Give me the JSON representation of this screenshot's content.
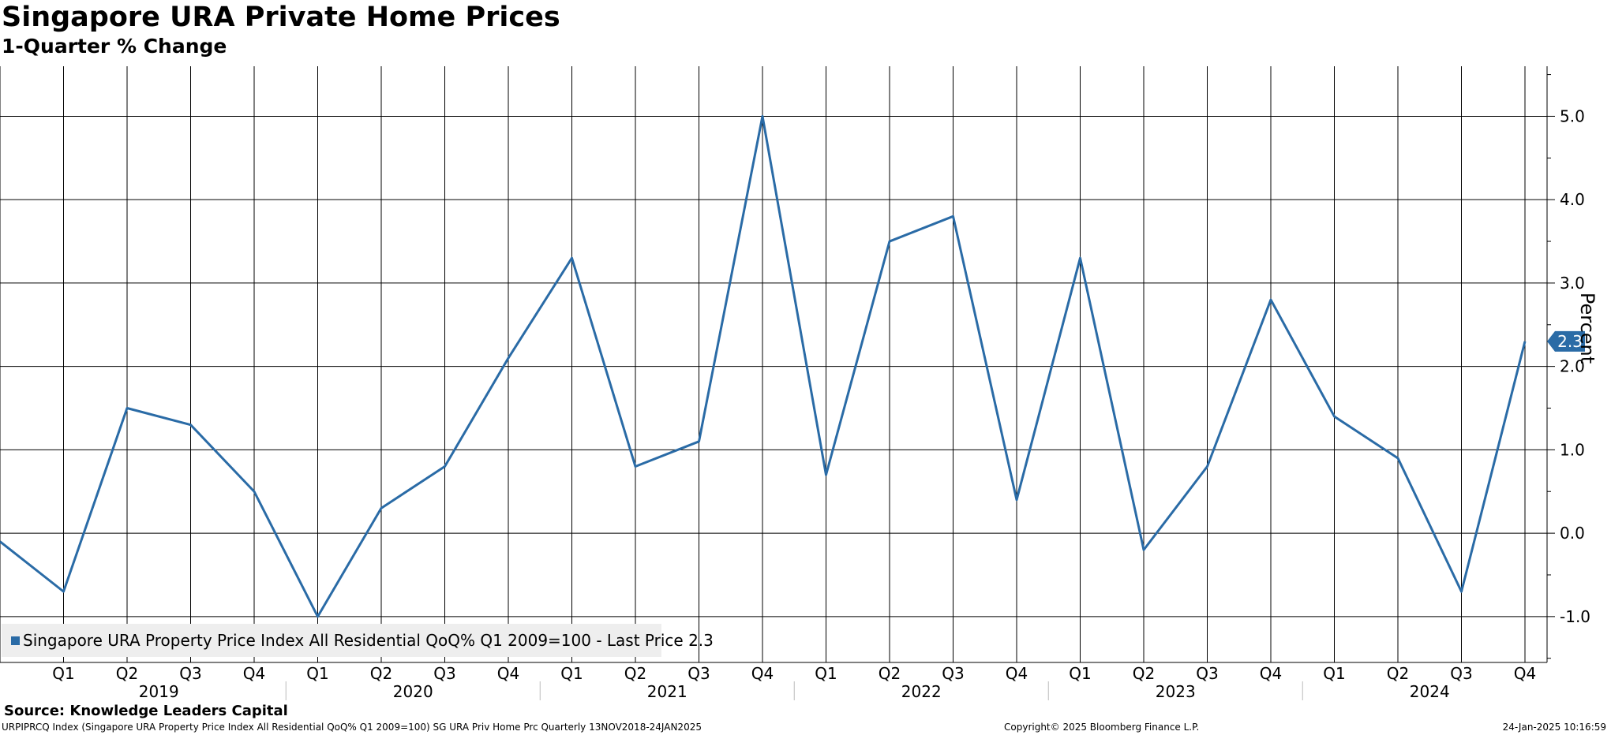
{
  "header": {
    "title": "Singapore URA Private Home Prices",
    "subtitle": "1-Quarter % Change"
  },
  "legend": {
    "label": "Singapore URA Property Price Index All Residential QoQ% Q1 2009=100 - Last Price 2.3"
  },
  "footer": {
    "source": "Source: Knowledge Leaders Capital",
    "index_info": "URPIPRCQ Index (Singapore URA Property Price Index All Residential QoQ% Q1 2009=100) SG URA Priv Home Prc  Quarterly 13NOV2018-24JAN2025",
    "copyright": "Copyright© 2025 Bloomberg Finance L.P.",
    "timestamp": "24-Jan-2025 10:16:59"
  },
  "colors": {
    "series": "#2a6ba6",
    "grid": "#000000",
    "legend_bg": "#eeeeee"
  },
  "chart_data": {
    "type": "line",
    "title": "Singapore URA Private Home Prices",
    "subtitle": "1-Quarter % Change",
    "ylabel": "Percent",
    "y_axis_side": "right",
    "ylim": [
      -1.55,
      5.6
    ],
    "yticks": [
      -1.0,
      0.0,
      1.0,
      2.0,
      3.0,
      4.0,
      5.0
    ],
    "ytick_labels": [
      "-1.0",
      "0.0",
      "1.0",
      "2.0",
      "3.0",
      "4.0",
      "5.0"
    ],
    "grid": true,
    "legend_position": "bottom-left",
    "quarter_labels": [
      "Q1",
      "Q2",
      "Q3",
      "Q4",
      "Q1",
      "Q2",
      "Q3",
      "Q4",
      "Q1",
      "Q2",
      "Q3",
      "Q4",
      "Q1",
      "Q2",
      "Q3",
      "Q4",
      "Q1",
      "Q2",
      "Q3",
      "Q4",
      "Q1",
      "Q2",
      "Q3",
      "Q4"
    ],
    "year_labels": [
      {
        "label": "2019",
        "between": [
          0,
          3
        ]
      },
      {
        "label": "2020",
        "between": [
          4,
          7
        ]
      },
      {
        "label": "2021",
        "between": [
          8,
          11
        ]
      },
      {
        "label": "2022",
        "between": [
          12,
          15
        ]
      },
      {
        "label": "2023",
        "between": [
          16,
          19
        ]
      },
      {
        "label": "2024",
        "between": [
          20,
          23
        ]
      }
    ],
    "x": [
      "2018-Q4",
      "2019-Q1",
      "2019-Q2",
      "2019-Q3",
      "2019-Q4",
      "2020-Q1",
      "2020-Q2",
      "2020-Q3",
      "2020-Q4",
      "2021-Q1",
      "2021-Q2",
      "2021-Q3",
      "2021-Q4",
      "2022-Q1",
      "2022-Q2",
      "2022-Q3",
      "2022-Q4",
      "2023-Q1",
      "2023-Q2",
      "2023-Q3",
      "2023-Q4",
      "2024-Q1",
      "2024-Q2",
      "2024-Q3",
      "2024-Q4"
    ],
    "series": [
      {
        "name": "Singapore URA Property Price Index All Residential QoQ% Q1 2009=100",
        "values": [
          -0.1,
          -0.7,
          1.5,
          1.3,
          0.5,
          -1.0,
          0.3,
          0.8,
          2.1,
          3.3,
          0.8,
          1.1,
          5.0,
          0.7,
          3.5,
          3.8,
          0.4,
          3.3,
          -0.2,
          0.8,
          2.8,
          1.4,
          0.9,
          -0.7,
          2.3
        ]
      }
    ],
    "last_value_label": "2.3"
  }
}
